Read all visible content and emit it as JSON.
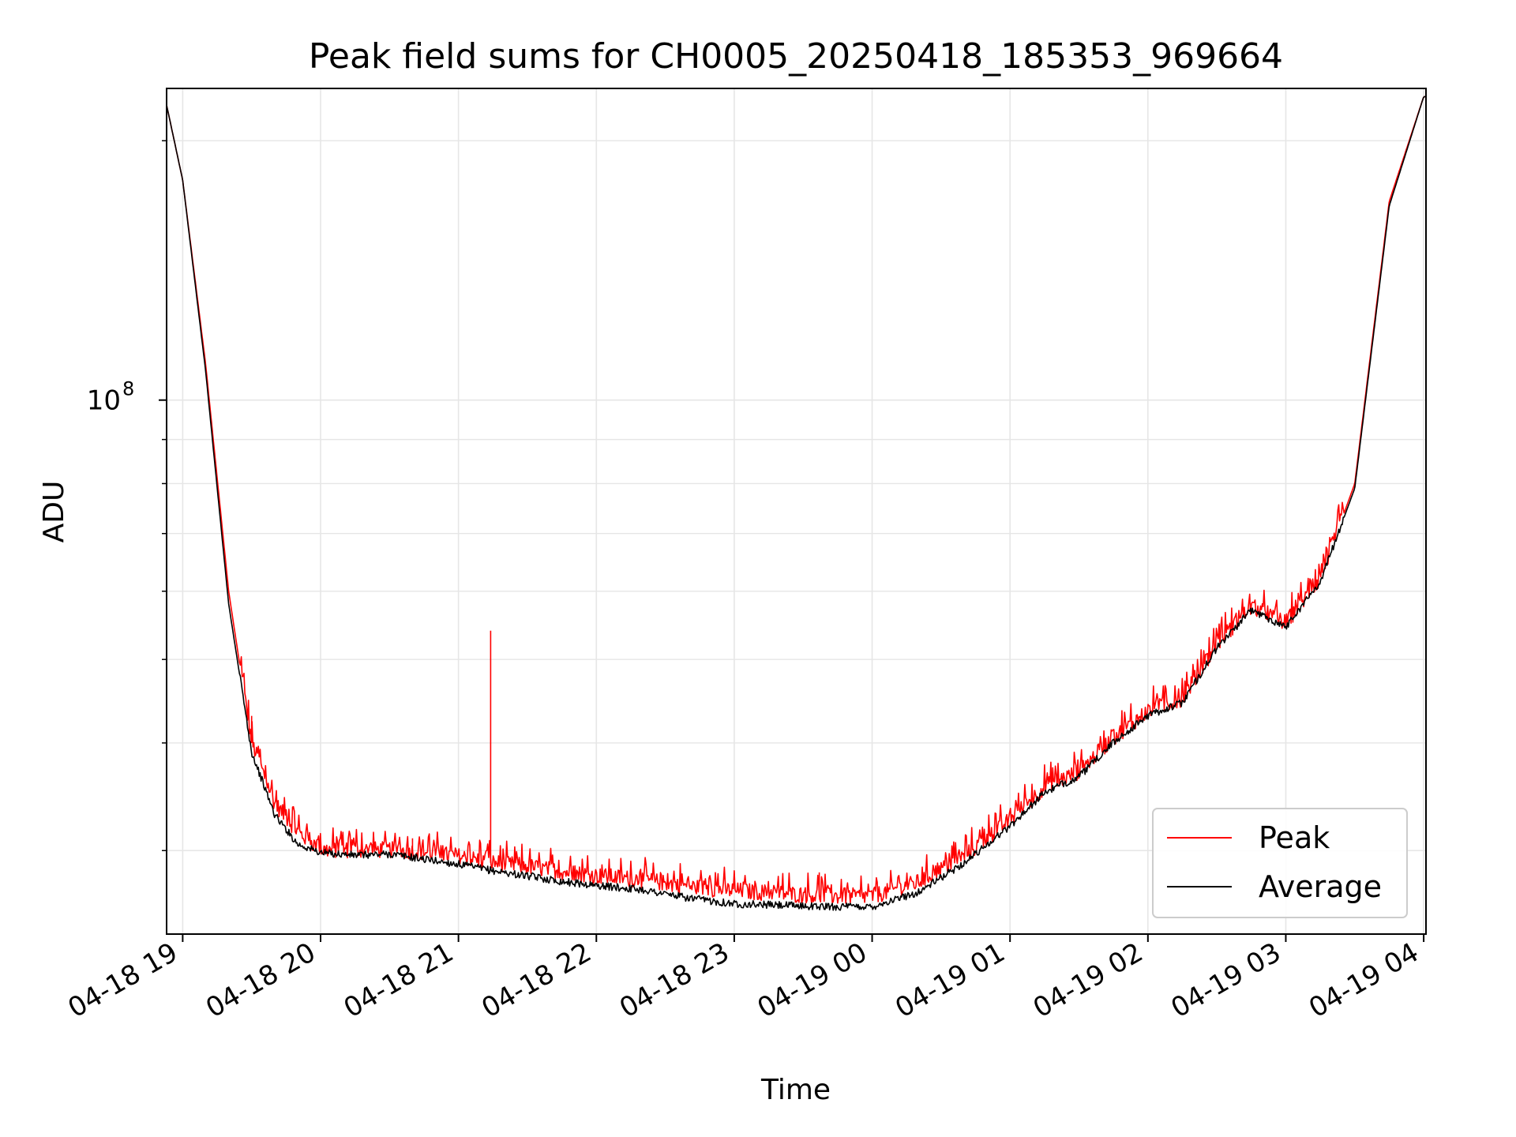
{
  "chart_data": {
    "type": "line",
    "title": "Peak field sums for CH0005_20250418_185353_969664",
    "xlabel": "Time",
    "ylabel": "ADU",
    "y_scale": "log",
    "ylim": [
      24000000,
      230000000
    ],
    "xlim": [
      "2025-04-18 18:53",
      "2025-04-19 04:01"
    ],
    "x_ticks": [
      "04-18 19",
      "04-18 20",
      "04-18 21",
      "04-18 22",
      "04-18 23",
      "04-19 00",
      "04-19 01",
      "04-19 02",
      "04-19 03",
      "04-19 04"
    ],
    "y_tick_label": {
      "base": "10",
      "exponent": "8"
    },
    "grid": true,
    "legend_position": "lower right",
    "x": [
      "2025-04-18 18:53",
      "2025-04-18 19:00",
      "2025-04-18 19:10",
      "2025-04-18 19:20",
      "2025-04-18 19:30",
      "2025-04-18 19:40",
      "2025-04-18 19:50",
      "2025-04-18 20:00",
      "2025-04-18 20:15",
      "2025-04-18 20:30",
      "2025-04-18 20:45",
      "2025-04-18 21:00",
      "2025-04-18 21:15",
      "2025-04-18 21:30",
      "2025-04-18 21:45",
      "2025-04-18 22:00",
      "2025-04-18 22:20",
      "2025-04-18 22:40",
      "2025-04-18 23:00",
      "2025-04-18 23:20",
      "2025-04-18 23:40",
      "2025-04-19 00:00",
      "2025-04-19 00:20",
      "2025-04-19 00:40",
      "2025-04-19 01:00",
      "2025-04-19 01:15",
      "2025-04-19 01:30",
      "2025-04-19 01:45",
      "2025-04-19 02:00",
      "2025-04-19 02:15",
      "2025-04-19 02:30",
      "2025-04-19 02:45",
      "2025-04-19 03:00",
      "2025-04-19 03:15",
      "2025-04-19 03:30",
      "2025-04-19 03:45",
      "2025-04-19 04:00"
    ],
    "series": [
      {
        "name": "Peak",
        "color": "#ff0000",
        "values": [
          220000000,
          180000000,
          110000000,
          60000000,
          40000000,
          34000000,
          31500000,
          30000000,
          30000000,
          30000000,
          29800000,
          29500000,
          29000000,
          28700000,
          28300000,
          28000000,
          27700000,
          27200000,
          26900000,
          26700000,
          26500000,
          26500000,
          27500000,
          29500000,
          32500000,
          35500000,
          37000000,
          40500000,
          43500000,
          45000000,
          52000000,
          57500000,
          55000000,
          62000000,
          80000000,
          170000000,
          225000000
        ]
      },
      {
        "name": "Average",
        "color": "#000000",
        "values": [
          220000000,
          180000000,
          108000000,
          58000000,
          39000000,
          33000000,
          30500000,
          29800000,
          29600000,
          29700000,
          29300000,
          28900000,
          28400000,
          28000000,
          27600000,
          27300000,
          27000000,
          26400000,
          26000000,
          25900000,
          25800000,
          25800000,
          26800000,
          29000000,
          32000000,
          35000000,
          36500000,
          40000000,
          43000000,
          44500000,
          51500000,
          57000000,
          54500000,
          61500000,
          79000000,
          168000000,
          225000000
        ]
      }
    ],
    "annotations": [
      {
        "series": "Peak",
        "x": "2025-04-18 21:14",
        "y": 54000000
      },
      {
        "series": "Peak",
        "x": "2025-04-18 20:40",
        "y": 31000000
      },
      {
        "series": "Peak",
        "x": "2025-04-18 19:30",
        "y": 43000000
      },
      {
        "series": "Peak",
        "x": "2025-04-18 23:37",
        "y": 28300000
      }
    ]
  }
}
